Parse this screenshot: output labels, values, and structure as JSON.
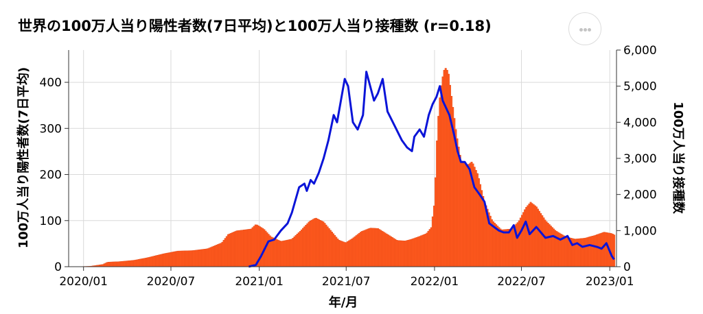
{
  "title": "世界の100万人当り陽性者数(7日平均)と100万人当り接種数 (r=0.18)",
  "menu_icon": "more-horizontal-icon",
  "colors": {
    "bars": "#ff5a1f",
    "bar_stroke": "#e04410",
    "line": "#0a14d8",
    "grid": "#d9d9d9"
  },
  "chart_data": {
    "type": "bar+line",
    "xlabel": "年/月",
    "ylabel_left": "100万人当り陽性者数(7日平均)",
    "ylabel_right": "100万人当り接種数",
    "ylim_left": [
      0,
      470
    ],
    "ylim_right": [
      0,
      6000
    ],
    "yticks_left": [
      0,
      100,
      200,
      300,
      400
    ],
    "yticks_right": [
      0,
      1000,
      2000,
      3000,
      4000,
      5000,
      6000
    ],
    "ytick_labels_right": [
      "0",
      "1,000",
      "2,000",
      "3,000",
      "4,000",
      "5,000",
      "6,000"
    ],
    "x_range": [
      "2019-12-01",
      "2023-01-15"
    ],
    "xticks": [
      "2020-01-01",
      "2020-07-01",
      "2021-01-01",
      "2021-07-01",
      "2022-01-01",
      "2022-07-01",
      "2023-01-01"
    ],
    "xtick_labels": [
      "2020/01",
      "2020/07",
      "2021/01",
      "2021/07",
      "2022/01",
      "2022/07",
      "2023/01"
    ],
    "grid": true,
    "series": [
      {
        "kind": "bar",
        "points": [
          [
            "2019-12-15",
            0
          ],
          [
            "2020-01-15",
            1
          ],
          [
            "2020-02-10",
            5
          ],
          [
            "2020-02-20",
            10
          ],
          [
            "2020-03-15",
            11
          ],
          [
            "2020-04-15",
            14
          ],
          [
            "2020-05-15",
            20
          ],
          [
            "2020-06-15",
            28
          ],
          [
            "2020-07-15",
            34
          ],
          [
            "2020-08-15",
            35
          ],
          [
            "2020-09-15",
            39
          ],
          [
            "2020-10-15",
            52
          ],
          [
            "2020-10-28",
            70
          ],
          [
            "2020-11-15",
            78
          ],
          [
            "2020-12-01",
            80
          ],
          [
            "2020-12-15",
            82
          ],
          [
            "2020-12-25",
            92
          ],
          [
            "2021-01-10",
            82
          ],
          [
            "2021-01-25",
            65
          ],
          [
            "2021-02-15",
            55
          ],
          [
            "2021-03-10",
            60
          ],
          [
            "2021-03-28",
            78
          ],
          [
            "2021-04-15",
            98
          ],
          [
            "2021-04-28",
            106
          ],
          [
            "2021-05-15",
            97
          ],
          [
            "2021-05-30",
            78
          ],
          [
            "2021-06-15",
            58
          ],
          [
            "2021-06-30",
            52
          ],
          [
            "2021-07-15",
            62
          ],
          [
            "2021-08-01",
            76
          ],
          [
            "2021-08-20",
            84
          ],
          [
            "2021-09-05",
            83
          ],
          [
            "2021-09-25",
            70
          ],
          [
            "2021-10-15",
            57
          ],
          [
            "2021-11-01",
            56
          ],
          [
            "2021-11-15",
            60
          ],
          [
            "2021-12-01",
            66
          ],
          [
            "2021-12-15",
            72
          ],
          [
            "2021-12-25",
            85
          ],
          [
            "2022-01-01",
            140
          ],
          [
            "2022-01-07",
            300
          ],
          [
            "2022-01-13",
            380
          ],
          [
            "2022-01-20",
            425
          ],
          [
            "2022-01-25",
            432
          ],
          [
            "2022-01-30",
            418
          ],
          [
            "2022-02-05",
            370
          ],
          [
            "2022-02-15",
            290
          ],
          [
            "2022-02-25",
            230
          ],
          [
            "2022-03-10",
            220
          ],
          [
            "2022-03-20",
            228
          ],
          [
            "2022-04-01",
            200
          ],
          [
            "2022-04-15",
            140
          ],
          [
            "2022-05-01",
            100
          ],
          [
            "2022-05-20",
            80
          ],
          [
            "2022-06-10",
            82
          ],
          [
            "2022-06-25",
            98
          ],
          [
            "2022-07-10",
            128
          ],
          [
            "2022-07-20",
            140
          ],
          [
            "2022-08-01",
            130
          ],
          [
            "2022-08-20",
            100
          ],
          [
            "2022-09-10",
            78
          ],
          [
            "2022-10-01",
            65
          ],
          [
            "2022-10-20",
            60
          ],
          [
            "2022-11-10",
            62
          ],
          [
            "2022-12-01",
            68
          ],
          [
            "2022-12-20",
            75
          ],
          [
            "2023-01-05",
            72
          ],
          [
            "2023-01-12",
            68
          ]
        ]
      },
      {
        "kind": "line",
        "axis": "right",
        "points": [
          [
            "2020-12-10",
            0
          ],
          [
            "2020-12-25",
            50
          ],
          [
            "2021-01-05",
            300
          ],
          [
            "2021-01-20",
            700
          ],
          [
            "2021-02-01",
            750
          ],
          [
            "2021-02-15",
            1000
          ],
          [
            "2021-03-01",
            1200
          ],
          [
            "2021-03-10",
            1500
          ],
          [
            "2021-03-25",
            2200
          ],
          [
            "2021-04-05",
            2300
          ],
          [
            "2021-04-10",
            2100
          ],
          [
            "2021-04-18",
            2400
          ],
          [
            "2021-04-25",
            2300
          ],
          [
            "2021-05-05",
            2600
          ],
          [
            "2021-05-15",
            3000
          ],
          [
            "2021-05-25",
            3500
          ],
          [
            "2021-06-05",
            4200
          ],
          [
            "2021-06-12",
            4000
          ],
          [
            "2021-06-20",
            4600
          ],
          [
            "2021-06-28",
            5200
          ],
          [
            "2021-07-05",
            5000
          ],
          [
            "2021-07-15",
            4000
          ],
          [
            "2021-07-25",
            3800
          ],
          [
            "2021-08-05",
            4200
          ],
          [
            "2021-08-12",
            5400
          ],
          [
            "2021-08-20",
            5000
          ],
          [
            "2021-08-28",
            4600
          ],
          [
            "2021-09-05",
            4800
          ],
          [
            "2021-09-15",
            5200
          ],
          [
            "2021-09-25",
            4300
          ],
          [
            "2021-10-10",
            3900
          ],
          [
            "2021-10-25",
            3500
          ],
          [
            "2021-11-05",
            3300
          ],
          [
            "2021-11-15",
            3200
          ],
          [
            "2021-11-20",
            3600
          ],
          [
            "2021-12-01",
            3800
          ],
          [
            "2021-12-10",
            3600
          ],
          [
            "2021-12-20",
            4200
          ],
          [
            "2021-12-28",
            4500
          ],
          [
            "2022-01-05",
            4700
          ],
          [
            "2022-01-12",
            5000
          ],
          [
            "2022-01-18",
            4600
          ],
          [
            "2022-01-25",
            4400
          ],
          [
            "2022-02-01",
            4200
          ],
          [
            "2022-02-10",
            3700
          ],
          [
            "2022-02-18",
            3200
          ],
          [
            "2022-02-25",
            2900
          ],
          [
            "2022-03-05",
            2900
          ],
          [
            "2022-03-15",
            2700
          ],
          [
            "2022-03-25",
            2200
          ],
          [
            "2022-04-05",
            2000
          ],
          [
            "2022-04-15",
            1800
          ],
          [
            "2022-04-25",
            1200
          ],
          [
            "2022-05-05",
            1100
          ],
          [
            "2022-05-15",
            1000
          ],
          [
            "2022-05-25",
            950
          ],
          [
            "2022-06-05",
            950
          ],
          [
            "2022-06-15",
            1150
          ],
          [
            "2022-06-22",
            800
          ],
          [
            "2022-07-01",
            1000
          ],
          [
            "2022-07-10",
            1250
          ],
          [
            "2022-07-18",
            900
          ],
          [
            "2022-08-01",
            1100
          ],
          [
            "2022-08-20",
            800
          ],
          [
            "2022-09-05",
            850
          ],
          [
            "2022-09-20",
            750
          ],
          [
            "2022-10-05",
            850
          ],
          [
            "2022-10-15",
            600
          ],
          [
            "2022-10-25",
            650
          ],
          [
            "2022-11-05",
            550
          ],
          [
            "2022-11-20",
            600
          ],
          [
            "2022-12-05",
            550
          ],
          [
            "2022-12-15",
            500
          ],
          [
            "2022-12-25",
            650
          ],
          [
            "2023-01-05",
            300
          ],
          [
            "2023-01-10",
            200
          ]
        ]
      }
    ]
  }
}
